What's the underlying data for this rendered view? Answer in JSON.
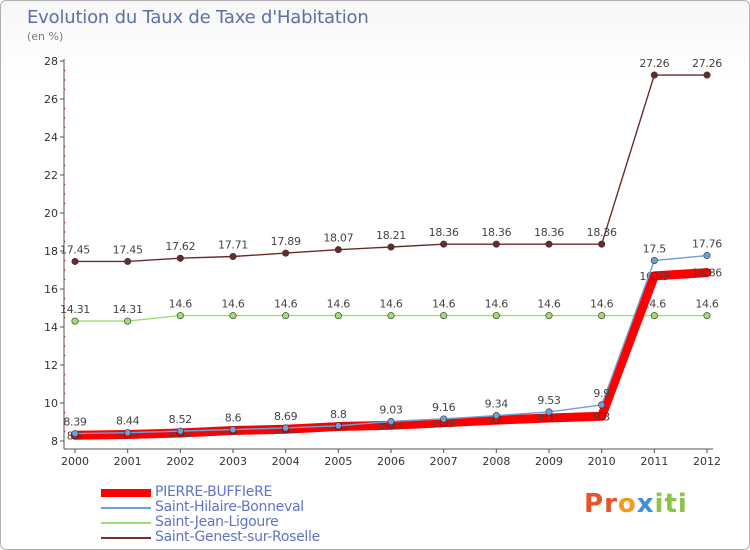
{
  "title": "Evolution du Taux de Taxe d'Habitation",
  "unit": "(en %)",
  "logo": {
    "text": "Proxiti",
    "letter_colors": [
      "#e8542a",
      "#e8542a",
      "#f39c1b",
      "#3f8ed8",
      "#8bc34a",
      "#8bc34a",
      "#8bc34a"
    ]
  },
  "legend": {
    "items": [
      {
        "label": "PIERRE-BUFFIeRE",
        "color": "#ff0000"
      },
      {
        "label": "Saint-Hilaire-Bonneval",
        "color": "#6fa0d8"
      },
      {
        "label": "Saint-Jean-Ligoure",
        "color": "#9be06a"
      },
      {
        "label": "Saint-Genest-sur-Roselle",
        "color": "#7a2e2e"
      }
    ]
  },
  "chart_data": {
    "type": "line",
    "x": [
      2000,
      2001,
      2002,
      2003,
      2004,
      2005,
      2006,
      2007,
      2008,
      2009,
      2010,
      2011,
      2012
    ],
    "ylim": [
      8,
      28
    ],
    "yticks": [
      8,
      10,
      12,
      14,
      16,
      18,
      20,
      22,
      24,
      26,
      28
    ],
    "grid": false,
    "series": [
      {
        "name": "Saint-Genest-sur-Roselle",
        "color": "#6b2a2a",
        "values": [
          17.45,
          17.45,
          17.62,
          17.71,
          17.89,
          18.07,
          18.21,
          18.36,
          18.36,
          18.36,
          18.36,
          27.26,
          27.26
        ],
        "labels": [
          "17.45",
          "17.45",
          "17.62",
          "17.71",
          "17.89",
          "18.07",
          "18.21",
          "18.36",
          "18.36",
          "18.36",
          "18.36",
          "27.26",
          "27.26"
        ]
      },
      {
        "name": "Saint-Jean-Ligoure",
        "color": "#9be06a",
        "values": [
          14.31,
          14.31,
          14.6,
          14.6,
          14.6,
          14.6,
          14.6,
          14.6,
          14.6,
          14.6,
          14.6,
          14.6,
          14.6
        ],
        "labels": [
          "14.31",
          "14.31",
          "14.6",
          "14.6",
          "14.6",
          "14.6",
          "14.6",
          "14.6",
          "14.6",
          "14.6",
          "14.6",
          "14.6",
          "14.6"
        ]
      },
      {
        "name": "PIERRE-BUFFIeRE",
        "color": "#ff0000",
        "values": [
          8.3,
          8.34,
          8.42,
          8.55,
          8.62,
          8.76,
          8.83,
          8.96,
          9.1,
          9.21,
          9.3,
          16.69,
          16.86
        ],
        "labels": [
          "8.3",
          "8.34",
          "8.42",
          "8.55",
          "8.62",
          "8.76",
          "8.83",
          "8.96",
          "9.1",
          "9.21",
          "9.3",
          "16.69",
          "16.86"
        ]
      },
      {
        "name": "Saint-Hilaire-Bonneval",
        "color": "#6fa0d8",
        "values": [
          8.39,
          8.44,
          8.52,
          8.6,
          8.69,
          8.8,
          9.03,
          9.16,
          9.34,
          9.53,
          9.9,
          17.5,
          17.76
        ],
        "labels": [
          "8.39",
          "8.44",
          "8.52",
          "8.6",
          "8.69",
          "8.8",
          "9.03",
          "9.16",
          "9.34",
          "9.53",
          "9.9",
          "17.5",
          "17.76"
        ]
      }
    ]
  }
}
